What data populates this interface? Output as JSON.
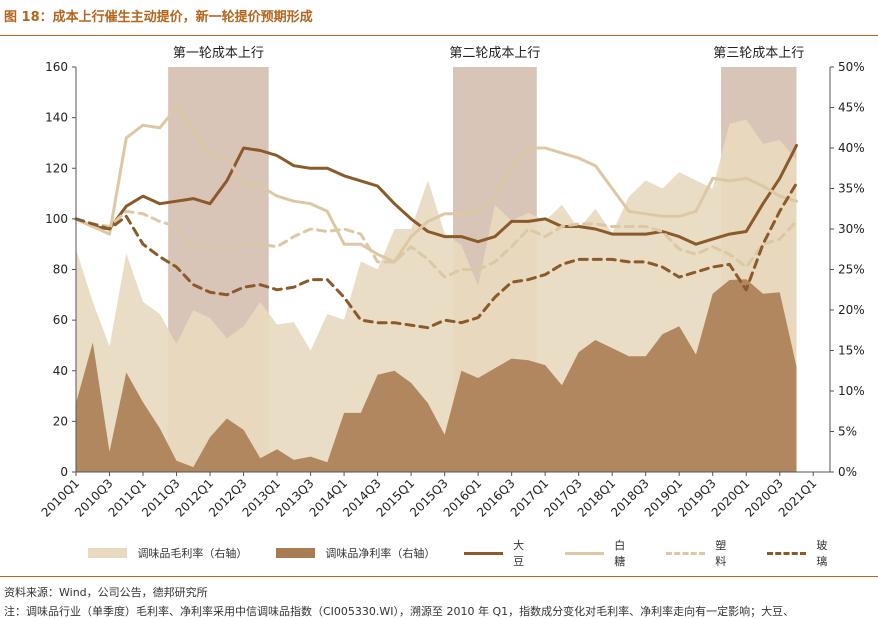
{
  "header": {
    "title": "图 18：成本上行催生主动提价，新一轮提价预期形成",
    "source": "资料来源：Wind，公司公告，德邦研究所",
    "note": "注：调味品行业（单季度）毛利率、净利率采用中信调味品指数（CI005330.WI），溯源至 2010 年 Q1，指数成分变化对毛利率、净利率走向有一定影响；大豆、"
  },
  "chart_data": {
    "type": "line+area",
    "title": "成本上行催生主动提价，新一轮提价预期形成",
    "x_tick_labels": [
      "2010Q1",
      "2010Q3",
      "2011Q1",
      "2011Q3",
      "2012Q1",
      "2012Q3",
      "2013Q1",
      "2013Q3",
      "2014Q1",
      "2014Q3",
      "2015Q1",
      "2015Q3",
      "2016Q1",
      "2016Q3",
      "2017Q1",
      "2017Q3",
      "2018Q1",
      "2018Q3",
      "2019Q1",
      "2019Q3",
      "2020Q1",
      "2020Q3",
      "2021Q1"
    ],
    "x_range_quarters": [
      0,
      45
    ],
    "y_left": {
      "range": [
        0,
        160
      ],
      "ticks": [
        "0",
        "20",
        "40",
        "60",
        "80",
        "100",
        "120",
        "140",
        "160"
      ]
    },
    "y_right": {
      "range": [
        0,
        50
      ],
      "unit": "%",
      "ticks": [
        "0%",
        "5%",
        "10%",
        "15%",
        "20%",
        "25%",
        "30%",
        "35%",
        "40%",
        "45%",
        "50%"
      ]
    },
    "shaded_periods": [
      {
        "label": "第一轮成本上行",
        "start": 5.5,
        "end": 11.5
      },
      {
        "label": "第二轮成本上行",
        "start": 22.5,
        "end": 27.5
      },
      {
        "label": "第三轮成本上行",
        "start": 38.5,
        "end": 43
      }
    ],
    "series": [
      {
        "name": "调味品毛利率（右轴）",
        "kind": "area",
        "axis": "right",
        "color": "#e8d9bf",
        "x": [
          0,
          1,
          2,
          3,
          4,
          5,
          6,
          7,
          8,
          9,
          10,
          11,
          12,
          13,
          14,
          15,
          16,
          17,
          18,
          19,
          20,
          21,
          22,
          23,
          24,
          25,
          26,
          27,
          28,
          29,
          30,
          31,
          32,
          33,
          34,
          35,
          36,
          37,
          38,
          39,
          40,
          41,
          42,
          43
        ],
        "values": [
          27.5,
          21,
          15.5,
          27,
          21,
          19.5,
          15.8,
          20,
          19,
          16.5,
          18,
          21,
          18.2,
          18.5,
          15,
          19.5,
          18.8,
          26,
          25,
          30,
          30,
          36,
          29.5,
          28,
          23,
          33,
          31,
          32,
          31,
          33,
          30,
          32.5,
          29.5,
          34,
          36,
          35,
          37,
          36,
          35,
          43,
          43.5,
          40.5,
          41,
          38.5
        ]
      },
      {
        "name": "调味品净利率（右轴）",
        "kind": "area",
        "axis": "right",
        "color": "#a87b52",
        "x": [
          0,
          1,
          2,
          3,
          4,
          5,
          6,
          7,
          8,
          9,
          10,
          11,
          12,
          13,
          14,
          15,
          16,
          17,
          18,
          19,
          20,
          21,
          22,
          23,
          24,
          25,
          26,
          27,
          28,
          29,
          30,
          31,
          32,
          33,
          34,
          35,
          36,
          37,
          38,
          39,
          40,
          41,
          42,
          43
        ],
        "values": [
          8.5,
          16,
          2.5,
          12.3,
          8.6,
          5.4,
          1.4,
          0.6,
          4.3,
          6.6,
          5.2,
          1.7,
          2.8,
          1.5,
          1.9,
          1.2,
          7.3,
          7.3,
          12,
          12.5,
          11,
          8.5,
          4.6,
          12.5,
          11.6,
          12.8,
          14,
          13.8,
          13.2,
          10.7,
          14.8,
          16.3,
          15.3,
          14.3,
          14.3,
          17,
          18,
          14.5,
          22,
          23.7,
          23.8,
          22,
          22.2,
          13
        ]
      },
      {
        "name": "大豆",
        "kind": "line",
        "axis": "left",
        "color": "#8b5a2b",
        "dash": "solid",
        "x": [
          0,
          1,
          2,
          3,
          4,
          5,
          6,
          7,
          8,
          9,
          10,
          11,
          12,
          13,
          14,
          15,
          16,
          17,
          18,
          19,
          20,
          21,
          22,
          23,
          24,
          25,
          26,
          27,
          28,
          29,
          30,
          31,
          32,
          33,
          34,
          35,
          36,
          37,
          38,
          39,
          40,
          41,
          42,
          43
        ],
        "values": [
          100,
          97,
          96,
          105,
          109,
          106,
          107,
          108,
          106,
          115,
          128,
          127,
          125,
          121,
          120,
          120,
          117,
          115,
          113,
          106,
          100,
          95,
          93,
          93,
          91,
          93,
          99,
          99,
          100,
          97,
          97,
          96,
          94,
          94,
          94,
          95,
          93,
          90,
          92,
          94,
          95,
          106,
          116,
          129
        ]
      },
      {
        "name": "白糖",
        "kind": "line",
        "axis": "left",
        "color": "#dcc8a4",
        "dash": "solid",
        "x": [
          0,
          1,
          2,
          3,
          4,
          5,
          6,
          7,
          8,
          9,
          10,
          11,
          12,
          13,
          14,
          15,
          16,
          17,
          18,
          19,
          20,
          21,
          22,
          23,
          24,
          25,
          26,
          27,
          28,
          29,
          30,
          31,
          32,
          33,
          34,
          35,
          36,
          37,
          38,
          39,
          40,
          41,
          42,
          43
        ],
        "values": [
          100,
          97,
          94,
          132,
          137,
          136,
          144,
          135,
          125,
          124,
          114,
          113,
          109,
          107,
          106,
          103,
          90,
          90,
          86,
          83,
          93,
          99,
          102,
          102,
          103,
          109,
          120,
          128,
          128,
          126,
          124,
          121,
          112,
          103,
          102,
          101,
          101,
          103,
          116,
          115,
          116,
          113,
          109,
          107
        ]
      },
      {
        "name": "塑料",
        "kind": "line",
        "axis": "left",
        "color": "#dcc8a4",
        "dash": "dashed",
        "x": [
          0,
          1,
          2,
          3,
          4,
          5,
          6,
          7,
          8,
          9,
          10,
          11,
          12,
          13,
          14,
          15,
          16,
          17,
          18,
          19,
          20,
          21,
          22,
          23,
          24,
          25,
          26,
          27,
          28,
          29,
          30,
          31,
          32,
          33,
          34,
          35,
          36,
          37,
          38,
          39,
          40,
          41,
          42,
          43
        ],
        "values": [
          100,
          98,
          97,
          103,
          102,
          99,
          97,
          89,
          89,
          88,
          90,
          90,
          89,
          93,
          96,
          95,
          96,
          94,
          83,
          83,
          89,
          84,
          77,
          80,
          80,
          83,
          89,
          96,
          93,
          97,
          98,
          98,
          97,
          97,
          97,
          95,
          88,
          86,
          89,
          86,
          81,
          90,
          92,
          99
        ]
      },
      {
        "name": "玻璃",
        "kind": "line",
        "axis": "left",
        "color": "#8b5a2b",
        "dash": "dashed",
        "x": [
          0,
          1,
          2,
          3,
          4,
          5,
          6,
          7,
          8,
          9,
          10,
          11,
          12,
          13,
          14,
          15,
          16,
          17,
          18,
          19,
          20,
          21,
          22,
          23,
          24,
          25,
          26,
          27,
          28,
          29,
          30,
          31,
          32,
          33,
          34,
          35,
          36,
          37,
          38,
          39,
          40,
          41,
          42,
          43
        ],
        "values": [
          100,
          98,
          96,
          101,
          90,
          85,
          81,
          74,
          71,
          70,
          73,
          74,
          72,
          73,
          76,
          76,
          69,
          60,
          59,
          59,
          58,
          57,
          60,
          59,
          61,
          69,
          75,
          76,
          78,
          82,
          84,
          84,
          84,
          83,
          83,
          81,
          77,
          79,
          81,
          82,
          72,
          90,
          103,
          114
        ]
      }
    ]
  },
  "legend": {
    "items": [
      {
        "label": "调味品毛利率（右轴）",
        "color": "#e8d9bf",
        "style": "area"
      },
      {
        "label": "调味品净利率（右轴）",
        "color": "#a87b52",
        "style": "area"
      },
      {
        "label": "大豆",
        "color": "#8b5a2b",
        "style": "solid"
      },
      {
        "label": "白糖",
        "color": "#dcc8a4",
        "style": "solid"
      },
      {
        "label": "塑料",
        "color": "#dcc8a4",
        "style": "dashed"
      },
      {
        "label": "玻璃",
        "color": "#8b5a2b",
        "style": "dashed"
      }
    ]
  }
}
